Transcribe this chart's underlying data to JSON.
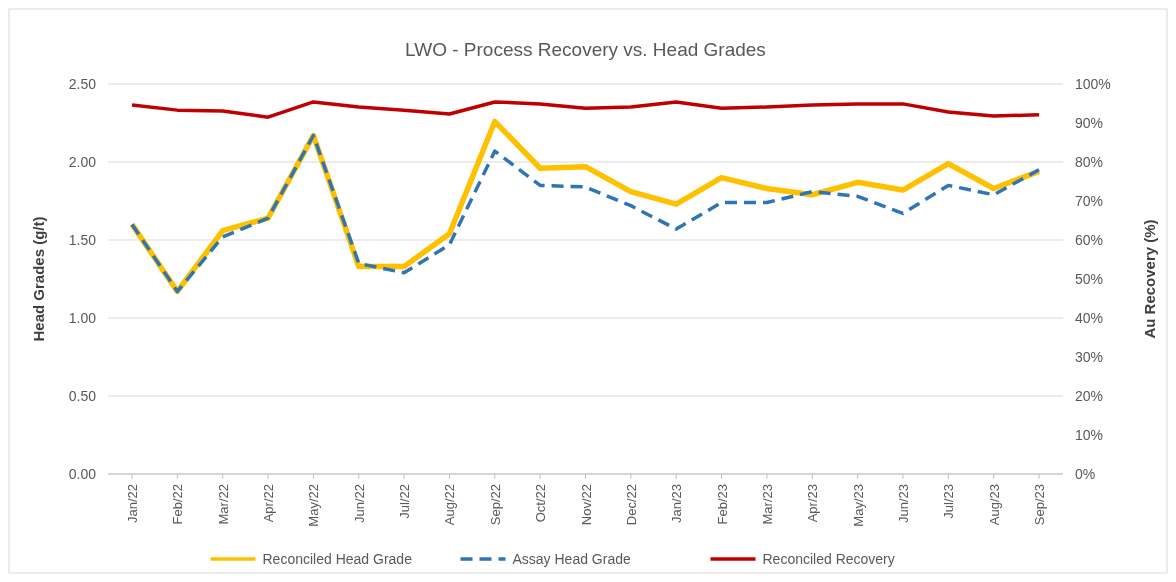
{
  "chart_data": {
    "type": "line",
    "title": "LWO - Process Recovery vs. Head Grades",
    "ylabel": "Head Grades (g/t)",
    "y2label": "Au Recovery (%)",
    "categories": [
      "Jan/22",
      "Feb/22",
      "Mar/22",
      "Apr/22",
      "May/22",
      "Jun/22",
      "Jul/22",
      "Aug/22",
      "Sep/22",
      "Oct/22",
      "Nov/22",
      "Dec/22",
      "Jan/23",
      "Feb/23",
      "Mar/23",
      "Apr/23",
      "May/23",
      "Jun/23",
      "Jul/23",
      "Aug/23",
      "Sep/23"
    ],
    "series": [
      {
        "name": "Reconciled Head Grade",
        "color": "#ffc000",
        "line_style": "solid",
        "values": [
          1.6,
          1.17,
          1.56,
          1.64,
          2.17,
          1.33,
          1.33,
          1.54,
          2.26,
          1.96,
          1.97,
          1.81,
          1.73,
          1.9,
          1.83,
          1.79,
          1.87,
          1.82,
          1.99,
          1.83,
          1.94
        ]
      },
      {
        "name": "Assay Head Grade",
        "color": "#2e75b6",
        "line_style": "dashed",
        "values": [
          1.6,
          1.17,
          1.52,
          1.64,
          2.17,
          1.35,
          1.29,
          1.47,
          2.07,
          1.85,
          1.84,
          1.72,
          1.57,
          1.74,
          1.74,
          1.81,
          1.78,
          1.67,
          1.85,
          1.79,
          1.95
        ]
      },
      {
        "name": "Reconciled Recovery",
        "color": "#c00000",
        "line_style": "solid",
        "axis": "y2",
        "values": [
          94.6,
          93.3,
          93.1,
          91.5,
          95.4,
          94.1,
          93.3,
          92.3,
          95.4,
          94.9,
          93.8,
          94.1,
          95.4,
          93.8,
          94.1,
          94.6,
          94.9,
          94.9,
          92.8,
          91.8,
          92.1
        ]
      }
    ],
    "ylim": [
      0,
      2.5
    ],
    "yticks": [
      {
        "value": 0,
        "label": "0.00"
      },
      {
        "value": 0.5,
        "label": "0.50"
      },
      {
        "value": 1,
        "label": "1.00"
      },
      {
        "value": 1.5,
        "label": "1.50"
      },
      {
        "value": 2,
        "label": "2.00"
      },
      {
        "value": 2.5,
        "label": "2.50"
      }
    ],
    "y2lim": [
      0,
      100
    ],
    "y2ticks": [
      {
        "value": 0,
        "label": "0%"
      },
      {
        "value": 10,
        "label": "10%"
      },
      {
        "value": 20,
        "label": "20%"
      },
      {
        "value": 30,
        "label": "30%"
      },
      {
        "value": 40,
        "label": "40%"
      },
      {
        "value": 50,
        "label": "50%"
      },
      {
        "value": 60,
        "label": "60%"
      },
      {
        "value": 70,
        "label": "70%"
      },
      {
        "value": 80,
        "label": "80%"
      },
      {
        "value": 90,
        "label": "90%"
      },
      {
        "value": 100,
        "label": "100%"
      }
    ],
    "grid": "y",
    "legend": "bottom",
    "marker": "none"
  }
}
